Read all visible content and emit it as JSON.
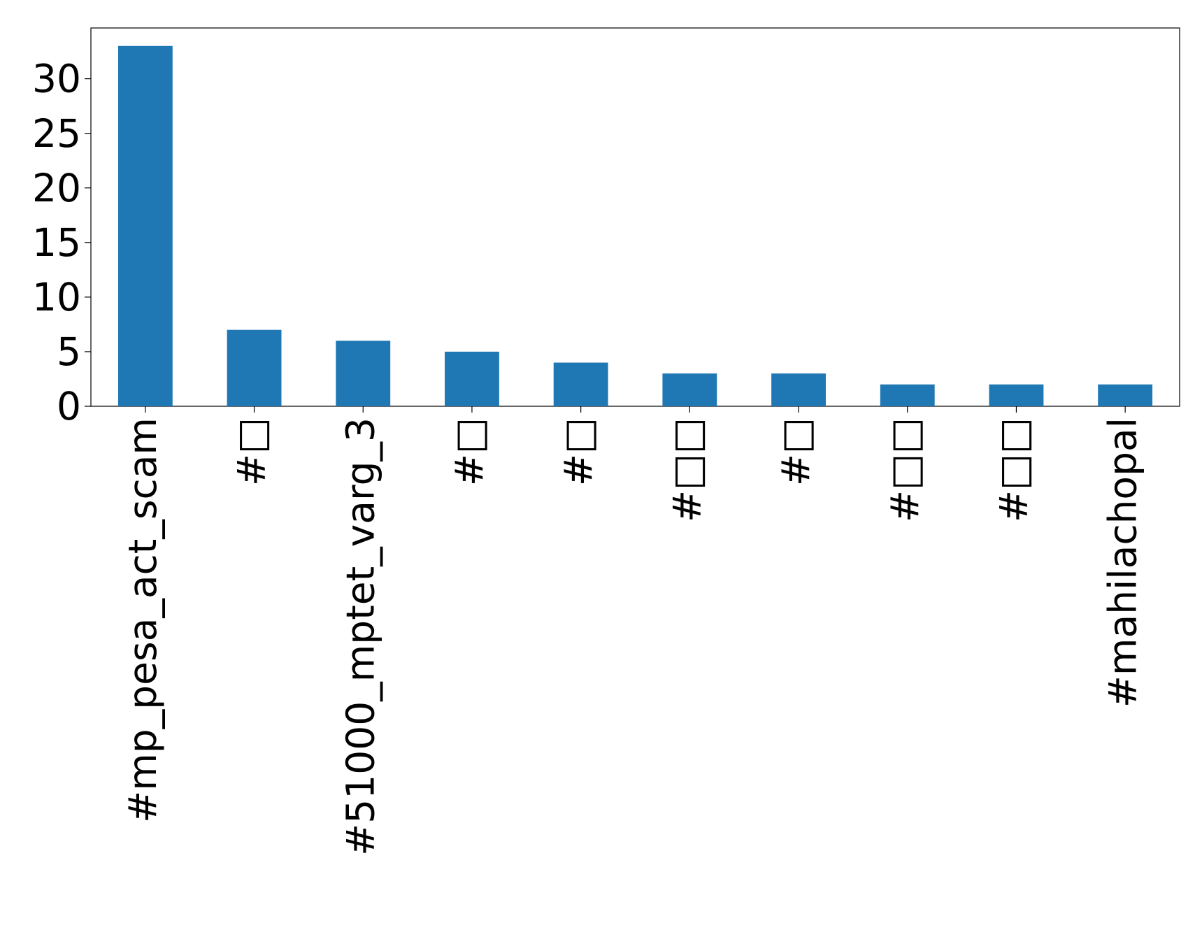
{
  "chart_data": {
    "type": "bar",
    "categories": [
      "#mp_pesa_act_scam",
      "#□",
      "#51000_mptet_varg_3",
      "#□",
      "#□",
      "#□□",
      "#□",
      "#□□",
      "#□□",
      "#mahilachopal"
    ],
    "values": [
      33,
      7,
      6,
      5,
      4,
      3,
      3,
      2,
      2,
      2
    ],
    "color": "#1f77b4",
    "ylim": [
      0,
      34.65
    ],
    "yticks": [
      0,
      5,
      10,
      15,
      20,
      25,
      30
    ],
    "grid": false
  }
}
